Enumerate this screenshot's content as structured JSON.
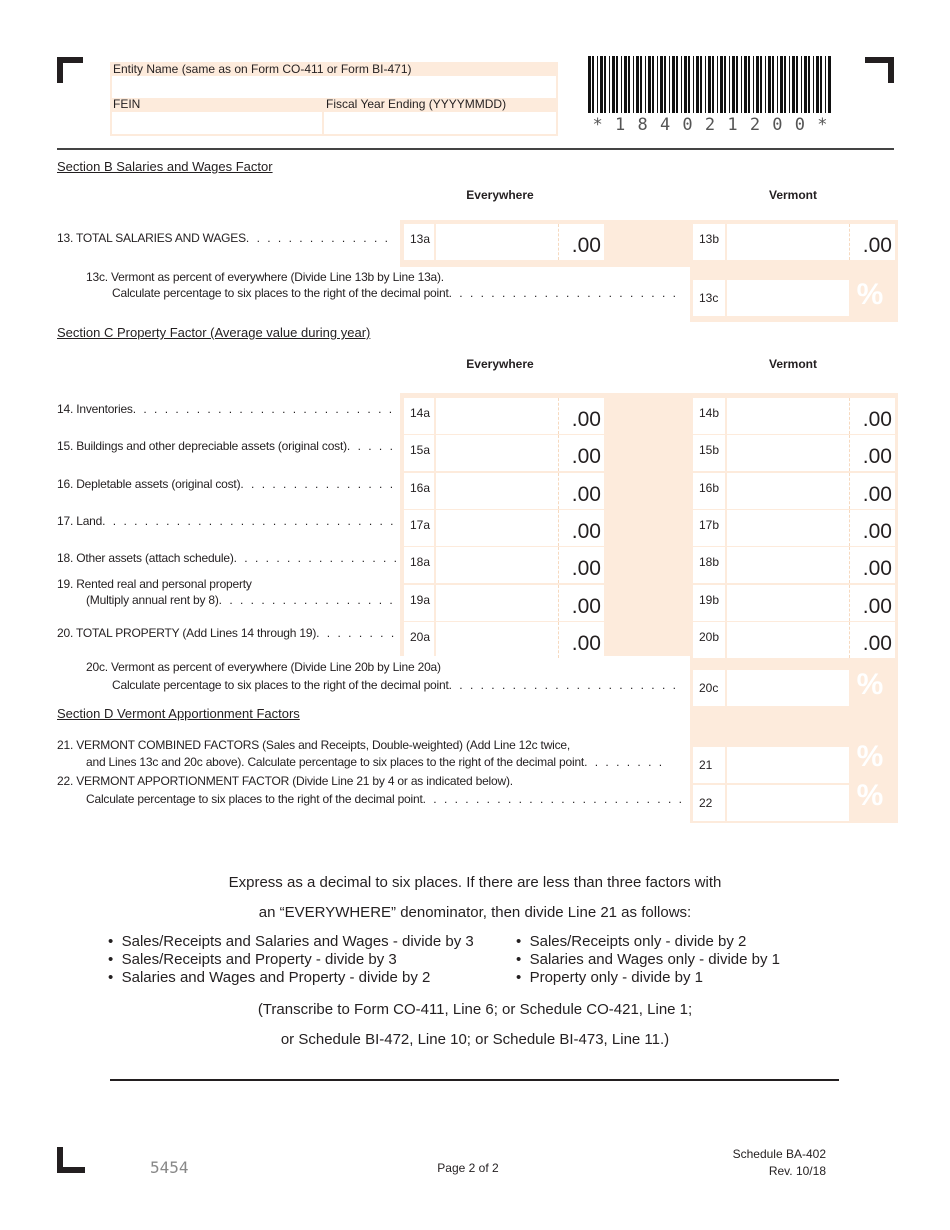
{
  "header": {
    "entity_label": "Entity Name (same as on Form CO-411 or Form BI-471)",
    "fein_label": "FEIN",
    "fye_label": "Fiscal Year Ending (YYYYMMDD)",
    "barcode_text": "* 1 8 4 0 2 1 2 0 0 *"
  },
  "section_b": {
    "title": "Section B    Salaries and Wages Factor",
    "everywhere": "Everywhere",
    "vermont": "Vermont",
    "line13": {
      "label": "13. TOTAL SALARIES AND WAGES",
      "a": "13a",
      "b": "13b",
      "cents": ".00"
    },
    "line13c": {
      "text1": "13c. Vermont as percent of everywhere (Divide Line 13b by Line 13a).",
      "text2": "Calculate percentage to six places to the right of the decimal point",
      "box": "13c",
      "pct": "%"
    }
  },
  "section_c": {
    "title": "Section C    Property Factor (Average value during year)",
    "everywhere": "Everywhere",
    "vermont": "Vermont",
    "rows": [
      {
        "label": "14.  Inventories",
        "a": "14a",
        "b": "14b"
      },
      {
        "label": "15.  Buildings and other depreciable assets (original cost)",
        "a": "15a",
        "b": "15b"
      },
      {
        "label": "16.  Depletable assets (original cost)",
        "a": "16a",
        "b": "16b"
      },
      {
        "label": "17.  Land",
        "a": "17a",
        "b": "17b"
      },
      {
        "label": "18.  Other assets (attach schedule)",
        "a": "18a",
        "b": "18b"
      },
      {
        "label": "(Multiply annual rent by 8)",
        "label_top": "19.  Rented real and personal property",
        "a": "19a",
        "b": "19b"
      },
      {
        "label": "20.  TOTAL PROPERTY (Add Lines 14 through 19)",
        "a": "20a",
        "b": "20b"
      }
    ],
    "cents": ".00",
    "line20c": {
      "text1": "20c. Vermont as percent of everywhere (Divide Line 20b by Line 20a)",
      "text2": "Calculate percentage to six places to the right of the decimal point",
      "box": "20c",
      "pct": "%"
    }
  },
  "section_d": {
    "title": "Section D    Vermont Apportionment Factors",
    "line21": {
      "text1": "21.  VERMONT COMBINED FACTORS (Sales and Receipts, Double-weighted) (Add Line 12c twice,",
      "text2": "and Lines 13c and 20c above). Calculate percentage to six places to the right of the decimal point",
      "box": "21",
      "pct": "%"
    },
    "line22": {
      "text1": "22.  VERMONT APPORTIONMENT FACTOR (Divide Line 21 by 4 or as indicated below).",
      "text2": "Calculate percentage to six places to the right of the decimal point",
      "box": "22",
      "pct": "%"
    }
  },
  "instructions": {
    "line1": "Express as a decimal to six places.  If there are less than three factors with",
    "line2": "an “EVERYWHERE” denominator, then divide Line 21 as follows:",
    "left": [
      "Sales/Receipts and Salaries and Wages - divide by 3",
      "Sales/Receipts and Property - divide by 3",
      "Salaries and Wages and Property - divide by 2"
    ],
    "right": [
      "Sales/Receipts only - divide by 2",
      "Salaries and Wages only - divide by 1",
      "Property only - divide by 1"
    ],
    "transcribe1": "(Transcribe to Form CO-411, Line 6; or Schedule CO-421, Line 1;",
    "transcribe2": "or Schedule BI-472, Line 10; or Schedule BI-473, Line 11.)"
  },
  "footer": {
    "code": "5454",
    "page": "Page 2 of 2",
    "schedule": "Schedule BA-402",
    "rev": "Rev. 10/18"
  }
}
